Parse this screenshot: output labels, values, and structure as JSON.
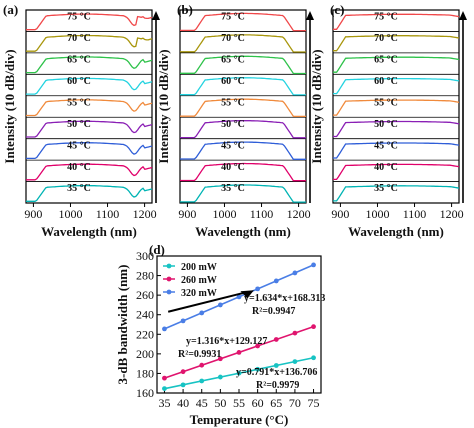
{
  "chart_data": [
    {
      "panel": "(a)",
      "type": "line",
      "xlabel": "Wavelength (nm)",
      "ylabel": "Intensity (10 dB/div)",
      "xlim": [
        880,
        1220
      ],
      "xticks": [
        900,
        1000,
        1100,
        1200
      ],
      "series": [
        {
          "name": "35 °C",
          "color": "#00b4b4"
        },
        {
          "name": "40 °C",
          "color": "#e0006a"
        },
        {
          "name": "45 °C",
          "color": "#2f5ed8"
        },
        {
          "name": "50 °C",
          "color": "#8a1fb5"
        },
        {
          "name": "55 °C",
          "color": "#f08a3c"
        },
        {
          "name": "60 °C",
          "color": "#24d3e0"
        },
        {
          "name": "65 °C",
          "color": "#2ec24a"
        },
        {
          "name": "70 °C",
          "color": "#a8960c"
        },
        {
          "name": "75 °C",
          "color": "#f0484a"
        }
      ]
    },
    {
      "panel": "(b)",
      "type": "line",
      "xlabel": "Wavelength (nm)",
      "ylabel": "Intensity (10 dB/div)",
      "xlim": [
        880,
        1220
      ],
      "xticks": [
        900,
        1000,
        1100,
        1200
      ],
      "series": [
        {
          "name": "35 °C",
          "color": "#00b4b4"
        },
        {
          "name": "40 °C",
          "color": "#e0006a"
        },
        {
          "name": "45 °C",
          "color": "#2f5ed8"
        },
        {
          "name": "50 °C",
          "color": "#8a1fb5"
        },
        {
          "name": "55 °C",
          "color": "#f08a3c"
        },
        {
          "name": "60 °C",
          "color": "#24d3e0"
        },
        {
          "name": "65 °C",
          "color": "#2ec24a"
        },
        {
          "name": "70 °C",
          "color": "#a8960c"
        },
        {
          "name": "75 °C",
          "color": "#f0484a"
        }
      ]
    },
    {
      "panel": "(c)",
      "type": "line",
      "xlabel": "Wavelength (nm)",
      "ylabel": "Intensity (10 dB/div)",
      "xlim": [
        880,
        1220
      ],
      "xticks": [
        900,
        1000,
        1100,
        1200
      ],
      "series": [
        {
          "name": "35 °C",
          "color": "#00b4b4"
        },
        {
          "name": "40 °C",
          "color": "#e0006a"
        },
        {
          "name": "45 °C",
          "color": "#2f5ed8"
        },
        {
          "name": "50 °C",
          "color": "#8a1fb5"
        },
        {
          "name": "55 °C",
          "color": "#f08a3c"
        },
        {
          "name": "60 °C",
          "color": "#24d3e0"
        },
        {
          "name": "65 °C",
          "color": "#2ec24a"
        },
        {
          "name": "70 °C",
          "color": "#a8960c"
        },
        {
          "name": "75 °C",
          "color": "#f0484a"
        }
      ]
    },
    {
      "panel": "(d)",
      "type": "scatter",
      "xlabel": "Temperature (°C)",
      "ylabel": "3-dB bandwidth (nm)",
      "xlim": [
        33,
        77
      ],
      "ylim": [
        160,
        300
      ],
      "xticks": [
        35,
        40,
        45,
        50,
        55,
        60,
        65,
        70,
        75
      ],
      "yticks": [
        160,
        180,
        200,
        220,
        240,
        260,
        280,
        300
      ],
      "x": [
        35,
        40,
        45,
        50,
        55,
        60,
        65,
        70,
        75
      ],
      "legend_position": "top-left",
      "series": [
        {
          "name": "200 mW",
          "color": "#17c3c3",
          "values": [
            164.5,
            168.3,
            172.3,
            176.3,
            180.2,
            184.2,
            188.1,
            192.1,
            196.0
          ],
          "fit": "y=0.791*x+136.706",
          "r2": "R²=0.9979"
        },
        {
          "name": "260 mW",
          "color": "#e0146e",
          "values": [
            175.2,
            181.8,
            188.4,
            195.0,
            201.5,
            208.1,
            214.7,
            221.2,
            227.8
          ],
          "fit": "y=1.316*x+129.127",
          "r2": "R²=0.9931"
        },
        {
          "name": "320 mW",
          "color": "#4a7ee6",
          "values": [
            225.5,
            233.7,
            241.8,
            250.0,
            258.2,
            266.4,
            274.5,
            282.7,
            290.9
          ],
          "fit": "y=1.634*x+168.313",
          "r2": "R²=0.9947"
        }
      ]
    }
  ]
}
